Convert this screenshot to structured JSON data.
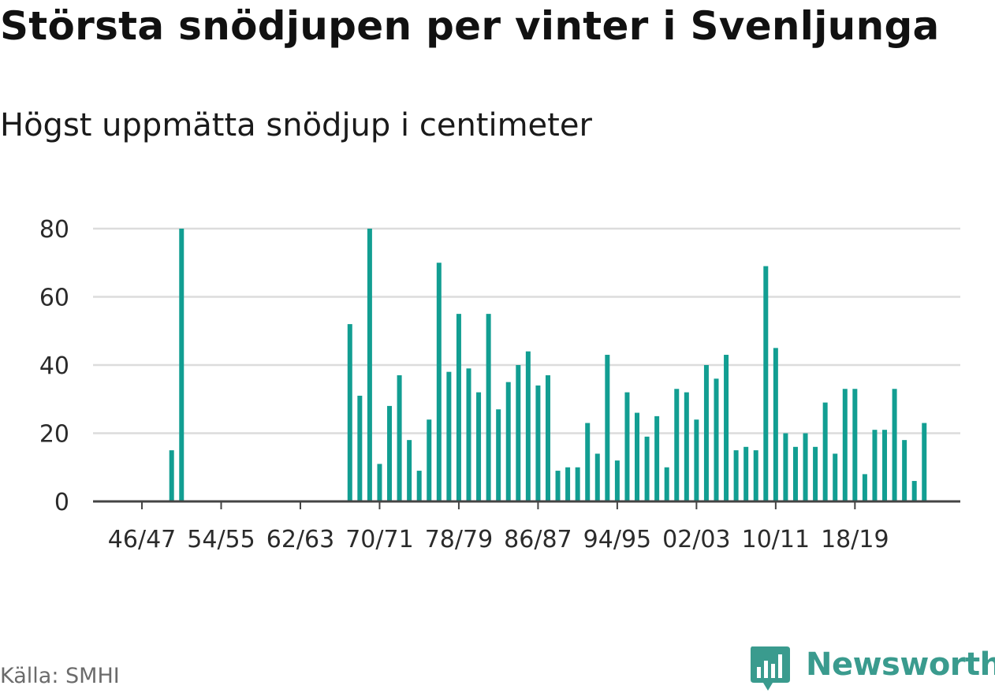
{
  "title": "Största snödjupen per vinter i Svenljunga",
  "subtitle": "Högst uppmätta snödjup i centimeter",
  "source": "Källa: SMHI",
  "brand": "Newsworthy",
  "colors": {
    "bar": "#129e92",
    "grid": "#dcdcdc",
    "axis": "#444444",
    "brand": "#3a9b8e"
  },
  "chart_data": {
    "type": "bar",
    "ylim": [
      0,
      80
    ],
    "yticks": [
      0,
      20,
      40,
      60,
      80
    ],
    "grid": true,
    "xtick_labels": [
      "46/47",
      "54/55",
      "62/63",
      "70/71",
      "78/79",
      "86/87",
      "94/95",
      "02/03",
      "10/11",
      "18/19"
    ],
    "first_season_start": 1942,
    "values": [
      null,
      null,
      null,
      null,
      null,
      null,
      null,
      15,
      80,
      null,
      null,
      null,
      null,
      null,
      null,
      null,
      null,
      null,
      null,
      null,
      null,
      null,
      null,
      null,
      null,
      52,
      31,
      80,
      11,
      28,
      37,
      18,
      9,
      24,
      70,
      38,
      55,
      39,
      32,
      55,
      27,
      35,
      40,
      44,
      34,
      37,
      9,
      10,
      10,
      23,
      14,
      43,
      12,
      32,
      26,
      19,
      25,
      10,
      33,
      32,
      24,
      40,
      36,
      43,
      15,
      16,
      15,
      69,
      45,
      20,
      16,
      20,
      16,
      29,
      14,
      33,
      33,
      8,
      21,
      21,
      33,
      18,
      6,
      23
    ]
  }
}
